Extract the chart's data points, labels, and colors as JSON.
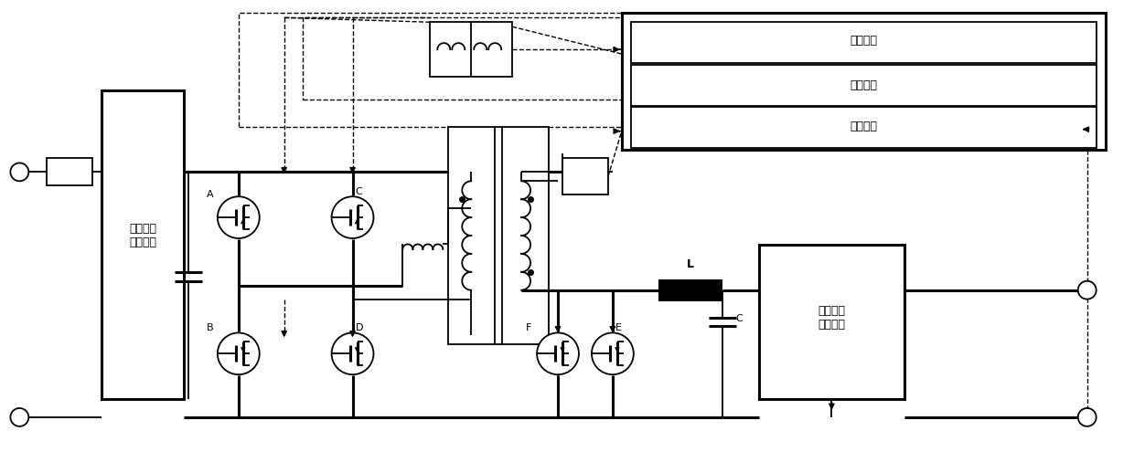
{
  "bg": "#ffffff",
  "lc": "#000000",
  "fig_w": 12.4,
  "fig_h": 5.18,
  "dpi": 100,
  "labels": {
    "emc_left": "电磁屜容\n性滤波器",
    "emc_right": "电磁屜容\n性滤波器",
    "drive": "驱动电路",
    "micro": "微处理器",
    "sample": "采样电路",
    "L": "L",
    "C": "C",
    "A": "A",
    "B": "B",
    "Cl": "C",
    "D": "D",
    "E": "E",
    "F": "F"
  },
  "fs": 9,
  "fs_sm": 8
}
